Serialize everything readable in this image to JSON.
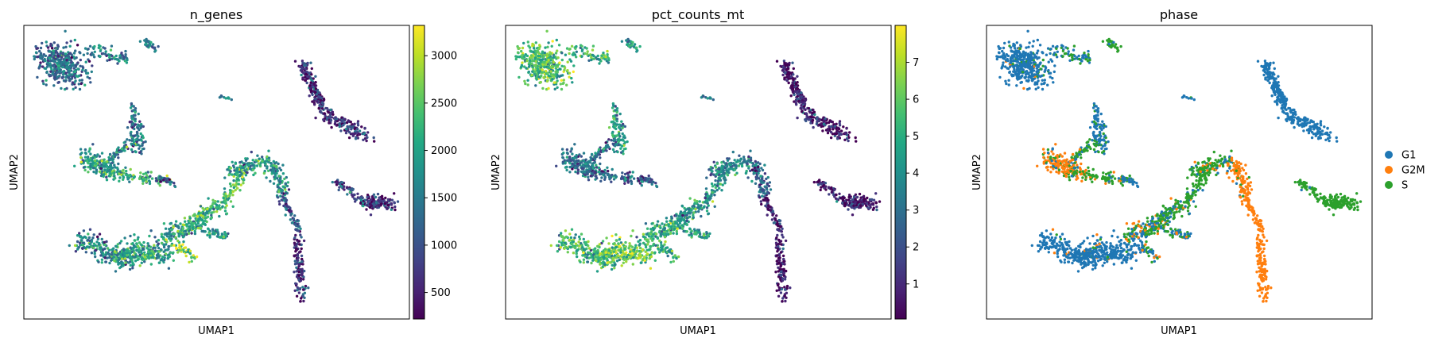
{
  "chart_data": [
    {
      "type": "scatter",
      "title": "n_genes",
      "xlabel": "UMAP1",
      "ylabel": "UMAP2",
      "grid": false,
      "color_by": "n_genes",
      "colormap": "viridis",
      "colorbar": {
        "range": [
          220,
          3320
        ],
        "ticks": [
          500,
          1000,
          1500,
          2000,
          2500,
          3000
        ]
      },
      "x_ticks_shown": false,
      "y_ticks_shown": false
    },
    {
      "type": "scatter",
      "title": "pct_counts_mt",
      "xlabel": "UMAP1",
      "ylabel": "UMAP2",
      "grid": false,
      "color_by": "pct_counts_mt",
      "colormap": "viridis",
      "colorbar": {
        "range": [
          0.05,
          8.0
        ],
        "ticks": [
          1,
          2,
          3,
          4,
          5,
          6,
          7
        ]
      },
      "x_ticks_shown": false,
      "y_ticks_shown": false
    },
    {
      "type": "scatter",
      "title": "phase",
      "xlabel": "UMAP1",
      "ylabel": "UMAP2",
      "grid": false,
      "color_by": "phase",
      "legend": {
        "position": "right",
        "entries": [
          {
            "name": "G1",
            "color": "#1f77b4"
          },
          {
            "name": "G2M",
            "color": "#ff7f0e"
          },
          {
            "name": "S",
            "color": "#2ca02c"
          }
        ]
      },
      "x_ticks_shown": false,
      "y_ticks_shown": false
    }
  ]
}
